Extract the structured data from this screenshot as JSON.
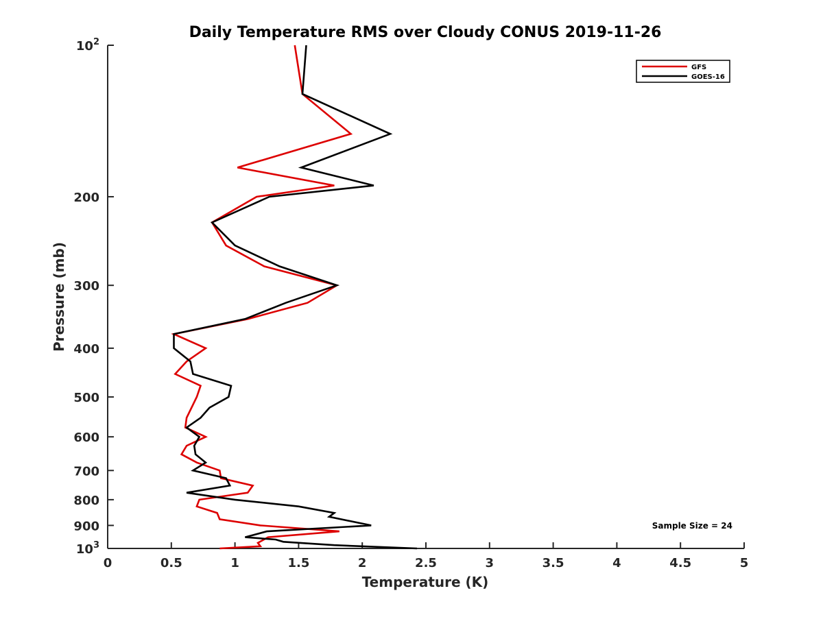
{
  "chart_data": {
    "type": "line",
    "title": "Daily Temperature RMS over Cloudy CONUS 2019-11-26",
    "xlabel": "Temperature (K)",
    "ylabel": "Pressure (mb)",
    "xlim": [
      0,
      5
    ],
    "ylim": [
      100,
      1000
    ],
    "yscale": "log",
    "yreversed": true,
    "x_ticks": [
      0,
      0.5,
      1,
      1.5,
      2,
      2.5,
      3,
      3.5,
      4,
      4.5,
      5
    ],
    "x_tick_labels": [
      "0",
      "0.5",
      "1",
      "1.5",
      "2",
      "2.5",
      "3",
      "3.5",
      "4",
      "4.5",
      "5"
    ],
    "y_ticks": [
      {
        "value": 100,
        "base": "10",
        "exp": "2"
      },
      {
        "value": 200,
        "label": "200"
      },
      {
        "value": 300,
        "label": "300"
      },
      {
        "value": 400,
        "label": "400"
      },
      {
        "value": 500,
        "label": "500"
      },
      {
        "value": 600,
        "label": "600"
      },
      {
        "value": 700,
        "label": "700"
      },
      {
        "value": 800,
        "label": "800"
      },
      {
        "value": 900,
        "label": "900"
      },
      {
        "value": 1000,
        "base": "10",
        "exp": "3"
      }
    ],
    "legend": {
      "position": "top-right",
      "entries": [
        "GFS",
        "GOES-16"
      ]
    },
    "annotation": "Sample Size = 24",
    "series": [
      {
        "name": "GFS",
        "color": "#dd0000",
        "points": [
          [
            1.47,
            100
          ],
          [
            1.53,
            125
          ],
          [
            1.91,
            150
          ],
          [
            1.02,
            175
          ],
          [
            1.78,
            190
          ],
          [
            1.17,
            200
          ],
          [
            0.82,
            225
          ],
          [
            0.93,
            250
          ],
          [
            1.23,
            275
          ],
          [
            1.8,
            300
          ],
          [
            1.57,
            325
          ],
          [
            1.1,
            350
          ],
          [
            0.52,
            375
          ],
          [
            0.77,
            400
          ],
          [
            0.62,
            425
          ],
          [
            0.53,
            450
          ],
          [
            0.73,
            475
          ],
          [
            0.7,
            500
          ],
          [
            0.62,
            550
          ],
          [
            0.61,
            575
          ],
          [
            0.77,
            600
          ],
          [
            0.62,
            625
          ],
          [
            0.58,
            650
          ],
          [
            0.7,
            675
          ],
          [
            0.88,
            700
          ],
          [
            0.89,
            725
          ],
          [
            1.14,
            750
          ],
          [
            1.1,
            775
          ],
          [
            0.72,
            800
          ],
          [
            0.7,
            825
          ],
          [
            0.86,
            850
          ],
          [
            0.88,
            875
          ],
          [
            1.2,
            900
          ],
          [
            1.82,
            925
          ],
          [
            1.26,
            950
          ],
          [
            1.18,
            975
          ],
          [
            1.2,
            990
          ],
          [
            0.88,
            1000
          ]
        ]
      },
      {
        "name": "GOES-16",
        "color": "#000000",
        "points": [
          [
            1.56,
            100
          ],
          [
            1.53,
            125
          ],
          [
            2.22,
            150
          ],
          [
            1.52,
            175
          ],
          [
            2.09,
            190
          ],
          [
            1.27,
            200
          ],
          [
            0.82,
            225
          ],
          [
            1.0,
            250
          ],
          [
            1.35,
            275
          ],
          [
            1.8,
            300
          ],
          [
            1.4,
            325
          ],
          [
            1.08,
            350
          ],
          [
            0.52,
            375
          ],
          [
            0.52,
            400
          ],
          [
            0.65,
            425
          ],
          [
            0.67,
            450
          ],
          [
            0.97,
            475
          ],
          [
            0.95,
            500
          ],
          [
            0.8,
            525
          ],
          [
            0.73,
            550
          ],
          [
            0.62,
            575
          ],
          [
            0.72,
            600
          ],
          [
            0.68,
            625
          ],
          [
            0.69,
            650
          ],
          [
            0.77,
            675
          ],
          [
            0.67,
            700
          ],
          [
            0.93,
            725
          ],
          [
            0.96,
            750
          ],
          [
            0.62,
            775
          ],
          [
            1.0,
            800
          ],
          [
            1.5,
            825
          ],
          [
            1.78,
            850
          ],
          [
            1.74,
            865
          ],
          [
            2.07,
            900
          ],
          [
            1.25,
            925
          ],
          [
            1.08,
            950
          ],
          [
            1.32,
            960
          ],
          [
            1.38,
            970
          ],
          [
            1.78,
            985
          ],
          [
            2.43,
            1000
          ]
        ]
      }
    ]
  }
}
